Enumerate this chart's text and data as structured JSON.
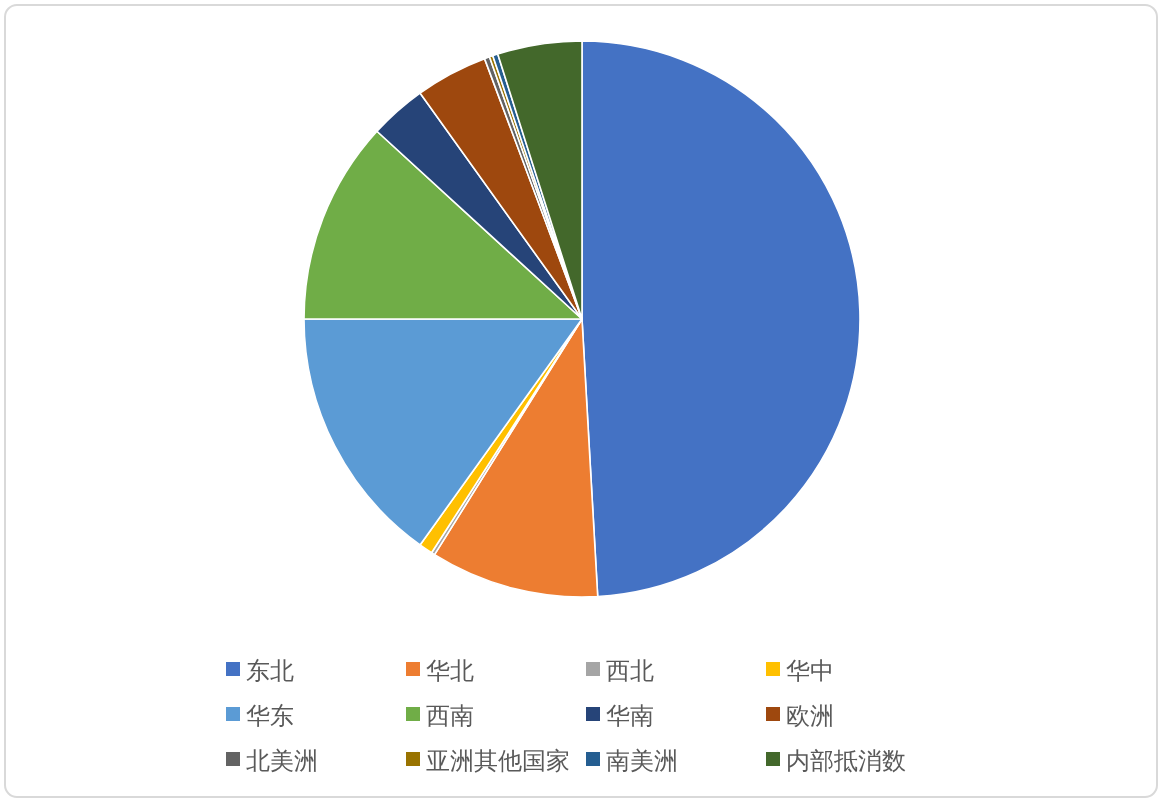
{
  "chart_data": {
    "type": "pie",
    "categories": [
      "东北",
      "华北",
      "西北",
      "华中",
      "华东",
      "西南",
      "华南",
      "欧洲",
      "北美洲",
      "亚洲其他国家",
      "南美洲",
      "内部抵消数"
    ],
    "values": [
      49.1,
      9.8,
      0.2,
      0.8,
      15.1,
      11.8,
      3.3,
      4.2,
      0.3,
      0.2,
      0.3,
      4.9
    ],
    "colors": [
      "#4472c4",
      "#ed7d31",
      "#a5a5a5",
      "#ffc000",
      "#5b9bd5",
      "#70ad47",
      "#264478",
      "#9e480e",
      "#636363",
      "#997300",
      "#255e91",
      "#43682b"
    ],
    "legend": "bottom"
  }
}
